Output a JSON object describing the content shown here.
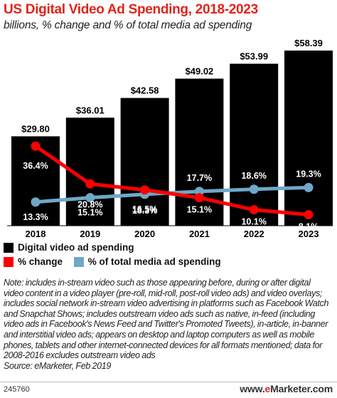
{
  "title": "US Digital Video Ad Spending, 2018-2023",
  "subtitle": "billions, % change and % of total media ad spending",
  "colors": {
    "title": "#e2231a",
    "bars": "#000000",
    "change": "#ff0000",
    "share": "#6fa8c8"
  },
  "chart_data": {
    "type": "bar",
    "categories": [
      "2018",
      "2019",
      "2020",
      "2021",
      "2022",
      "2023"
    ],
    "series": [
      {
        "name": "Digital video ad spending",
        "type": "bar",
        "values": [
          29.8,
          36.01,
          42.58,
          49.02,
          53.99,
          58.39
        ],
        "labels": [
          "$29.80",
          "$36.01",
          "$42.58",
          "$49.02",
          "$53.99",
          "$58.39"
        ]
      },
      {
        "name": "% change",
        "type": "line",
        "values": [
          36.4,
          20.8,
          18.3,
          15.1,
          10.1,
          8.1
        ],
        "labels": [
          "36.4%",
          "20.8%",
          "18.3%",
          "15.1%",
          "10.1%",
          "8.1%"
        ]
      },
      {
        "name": "% of total media ad spending",
        "type": "line",
        "values": [
          13.3,
          15.1,
          16.5,
          17.7,
          18.6,
          19.3
        ],
        "labels": [
          "13.3%",
          "15.1%",
          "16.5%",
          "17.7%",
          "18.6%",
          "19.3%"
        ]
      }
    ],
    "ylim": [
      0,
      60
    ],
    "grid": false,
    "legend_position": "bottom-left"
  },
  "legend": {
    "spending": "Digital video ad spending",
    "change": "% change",
    "share": "% of total media ad spending"
  },
  "note": "Note: includes in-stream video such as those appearing before, during or after digital video content in a video player (pre-roll, mid-roll, post-roll video ads) and video overlays; includes social network in-stream video advertising in platforms such as Facebook Watch and Snapchat Shows; includes outstream video ads such as native, in-feed (including video ads in Facebook's News Feed and Twitter's Promoted Tweets), in-article, in-banner and interstitial video ads; appears on desktop and laptop computers as well as mobile phones, tablets and other internet-connected devices for all formats mentioned; data for 2008-2016 excludes outstream video ads",
  "source": "Source: eMarketer, Feb 2019",
  "chart_id": "245760",
  "brand": {
    "prefix": "www.",
    "accent": "e",
    "suffix": "Marketer.com"
  }
}
